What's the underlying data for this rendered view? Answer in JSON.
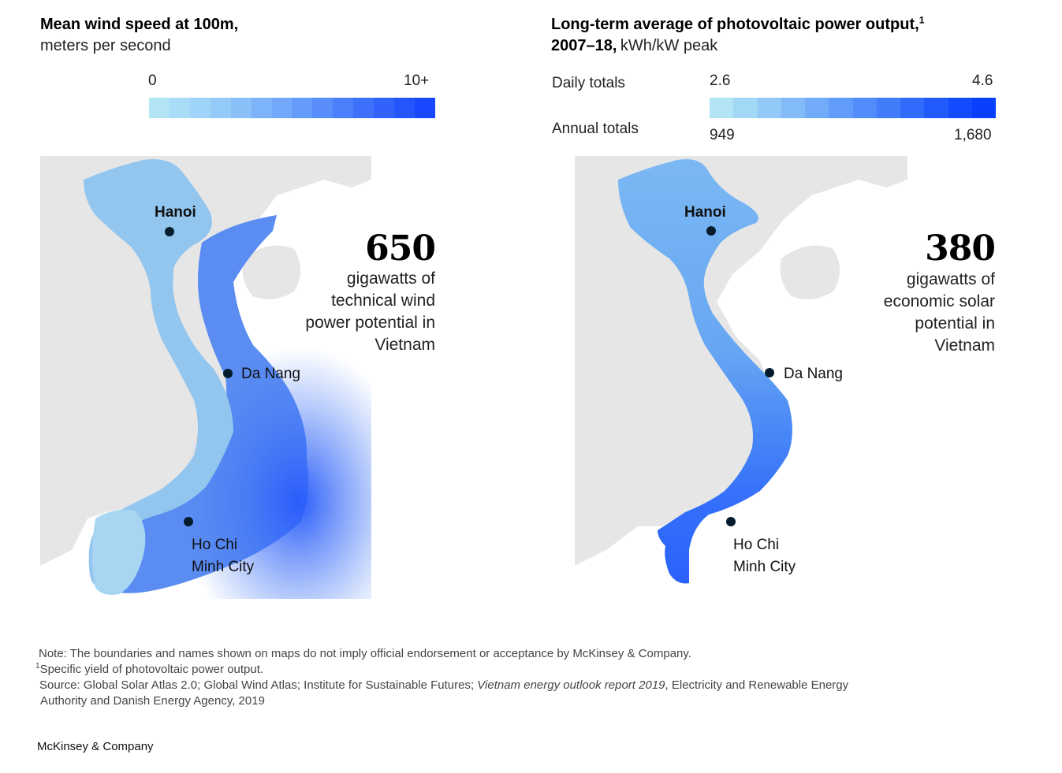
{
  "wind": {
    "title_bold": "Mean wind speed at 100m,",
    "title_rest": "meters per second",
    "scale_min": "0",
    "scale_max": "10+",
    "scale_colors": [
      "#b3e4f5",
      "#a9dcf6",
      "#9fd3f7",
      "#94caf8",
      "#89c0f8",
      "#7db4f9",
      "#72a8f9",
      "#659bfa",
      "#588dfa",
      "#4b7ffb",
      "#3e71fb",
      "#3163fc",
      "#2456fd",
      "#1848fd"
    ],
    "big_number": "650",
    "desc_lines": [
      "gigawatts of",
      "technical wind",
      "power potential in",
      "Vietnam"
    ],
    "cities": {
      "hanoi": "Hanoi",
      "da_nang": "Da Nang",
      "hcmc_1": "Ho Chi",
      "hcmc_2": "Minh City"
    }
  },
  "solar": {
    "title_bold_1": "Long-term average of photovoltaic power output,",
    "title_sup": "1",
    "title_bold_2": "2007–18,",
    "title_rest": "kWh/kW peak",
    "daily_label": "Daily totals",
    "annual_label": "Annual  totals",
    "daily_min": "2.6",
    "daily_max": "4.6",
    "annual_min": "949",
    "annual_max": "1,680",
    "scale_colors": [
      "#b3e4f5",
      "#a3d7f6",
      "#93c9f7",
      "#82bbf8",
      "#72acf9",
      "#619cfa",
      "#518cfa",
      "#417cfb",
      "#316bfc",
      "#215bfd",
      "#124bfd",
      "#0940fd"
    ],
    "big_number": "380",
    "desc_lines": [
      "gigawatts of",
      "economic solar",
      "potential in",
      "Vietnam"
    ],
    "cities": {
      "hanoi": "Hanoi",
      "da_nang": "Da Nang",
      "hcmc_1": "Ho Chi",
      "hcmc_2": "Minh City"
    }
  },
  "notes": {
    "line1": "Note: The boundaries and names shown on maps do not imply official endorsement or acceptance by McKinsey & Company.",
    "line2_sup": "1",
    "line2": "Specific yield of photovoltaic power output.",
    "line3_a": "Source: Global Solar Atlas 2.0; Global Wind Atlas; Institute for Sustainable Futures; ",
    "line3_italic": "Vietnam energy outlook report 2019",
    "line3_b": ", Electricity and Renewable Energy",
    "line4": "Authority and Danish Energy Agency, 2019"
  },
  "footer": "McKinsey & Company",
  "colors": {
    "land_gray": "#e6e6e6",
    "dot": "#051c2c"
  }
}
